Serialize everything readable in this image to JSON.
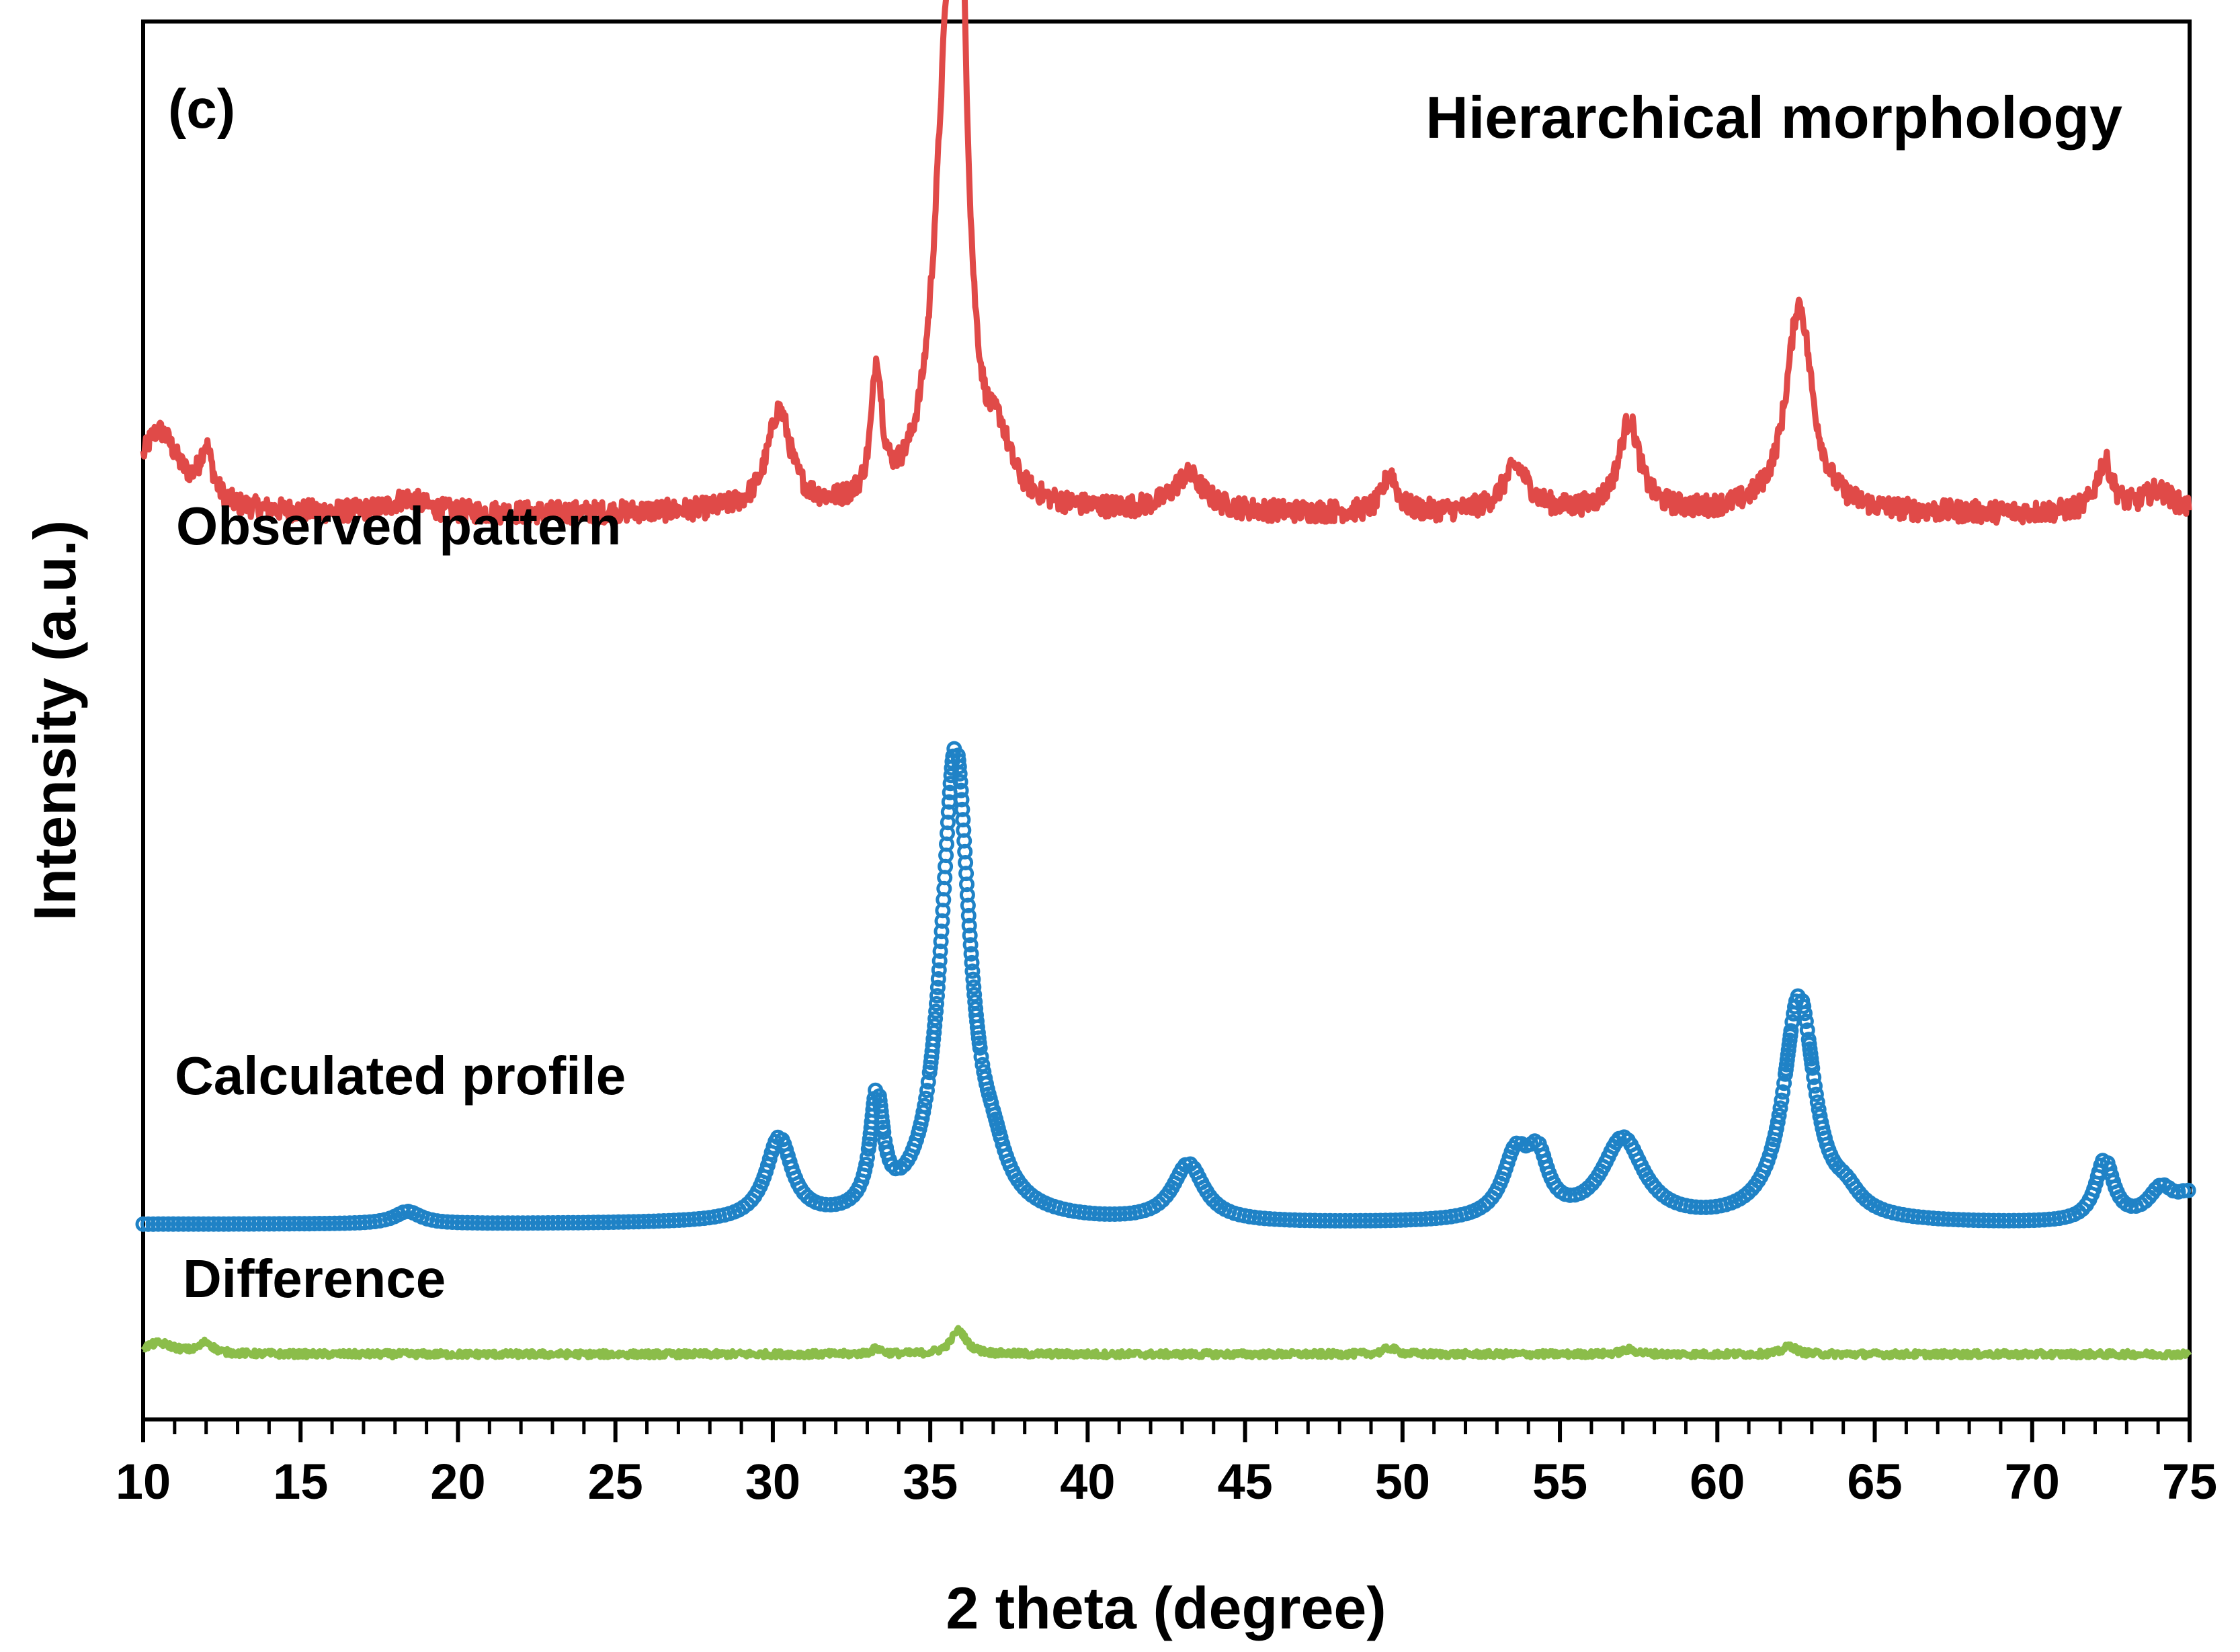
{
  "chart_data": {
    "type": "line",
    "panel_label": "(c)",
    "title": "Hierarchical morphology",
    "xlabel": "2 theta (degree)",
    "ylabel": "Intensity (a.u.)",
    "xlim": [
      10,
      75
    ],
    "x_major_ticks": [
      10,
      15,
      20,
      25,
      30,
      35,
      40,
      45,
      50,
      55,
      60,
      65,
      70,
      75
    ],
    "x_tick_labels": [
      "10",
      "15",
      "20",
      "25",
      "30",
      "35",
      "40",
      "45",
      "50",
      "55",
      "60",
      "65",
      "70",
      "75"
    ],
    "x_minor_step": 1,
    "y_ticks_shown": false,
    "grid": false,
    "series": [
      {
        "name": "Observed pattern",
        "label": "Observed pattern",
        "style": "noisy-line",
        "color": "#e04a48",
        "baseline": 1.0,
        "noise": 0.06,
        "peaks": [
          {
            "x": 10.5,
            "height": 0.45,
            "width": 0.8
          },
          {
            "x": 12.0,
            "height": 0.28,
            "width": 0.25
          },
          {
            "x": 18.4,
            "height": 0.08,
            "width": 0.6
          },
          {
            "x": 30.2,
            "height": 0.55,
            "width": 0.45
          },
          {
            "x": 33.3,
            "height": 0.72,
            "width": 0.2
          },
          {
            "x": 35.5,
            "height": 1.8,
            "width": 0.5
          },
          {
            "x": 35.9,
            "height": 2.9,
            "width": 0.3
          },
          {
            "x": 37.2,
            "height": 0.25,
            "width": 0.4
          },
          {
            "x": 43.2,
            "height": 0.2,
            "width": 0.6
          },
          {
            "x": 49.6,
            "height": 0.22,
            "width": 0.25
          },
          {
            "x": 53.6,
            "height": 0.25,
            "width": 0.5
          },
          {
            "x": 57.2,
            "height": 0.5,
            "width": 0.4
          },
          {
            "x": 62.6,
            "height": 1.15,
            "width": 0.5
          },
          {
            "x": 72.3,
            "height": 0.28,
            "width": 0.3
          },
          {
            "x": 74.0,
            "height": 0.12,
            "width": 0.6
          }
        ]
      },
      {
        "name": "Calculated profile",
        "label": "Calculated profile",
        "style": "circle-markers",
        "color": "#1f82c6",
        "baseline": 0.0,
        "peaks": [
          {
            "x": 18.4,
            "height": 0.06,
            "width": 0.5
          },
          {
            "x": 30.2,
            "height": 0.4,
            "width": 0.5
          },
          {
            "x": 33.3,
            "height": 0.55,
            "width": 0.25
          },
          {
            "x": 35.8,
            "height": 2.3,
            "width": 0.55
          },
          {
            "x": 37.0,
            "height": 0.15,
            "width": 0.5
          },
          {
            "x": 43.2,
            "height": 0.28,
            "width": 0.6
          },
          {
            "x": 53.6,
            "height": 0.3,
            "width": 0.5
          },
          {
            "x": 54.3,
            "height": 0.26,
            "width": 0.4
          },
          {
            "x": 57.0,
            "height": 0.4,
            "width": 0.8
          },
          {
            "x": 62.6,
            "height": 1.1,
            "width": 0.6
          },
          {
            "x": 64.1,
            "height": 0.08,
            "width": 0.5
          },
          {
            "x": 72.3,
            "height": 0.3,
            "width": 0.35
          },
          {
            "x": 74.1,
            "height": 0.15,
            "width": 0.5
          },
          {
            "x": 75.0,
            "height": 0.12,
            "width": 0.5
          }
        ]
      },
      {
        "name": "Difference",
        "label": "Difference",
        "style": "noisy-line",
        "color": "#8bbd4a",
        "baseline": 0.0,
        "noise": 0.035,
        "peaks": [
          {
            "x": 10.5,
            "height": 0.12,
            "width": 0.6
          },
          {
            "x": 12.0,
            "height": 0.12,
            "width": 0.25
          },
          {
            "x": 33.3,
            "height": 0.06,
            "width": 0.2
          },
          {
            "x": 35.9,
            "height": 0.26,
            "width": 0.3
          },
          {
            "x": 49.6,
            "height": 0.07,
            "width": 0.25
          },
          {
            "x": 57.2,
            "height": 0.05,
            "width": 0.3
          },
          {
            "x": 62.3,
            "height": 0.09,
            "width": 0.25
          }
        ]
      }
    ]
  }
}
